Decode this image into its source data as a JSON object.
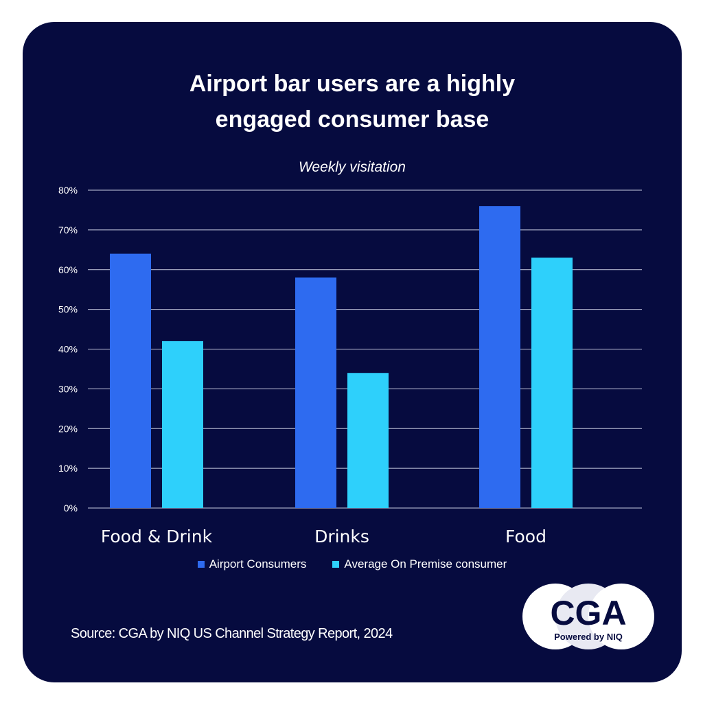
{
  "title": {
    "line1": "Airport bar users are a highly",
    "line2": "engaged consumer base"
  },
  "source": "Source: CGA by NIQ US Channel Strategy Report, 2024",
  "logo": {
    "text": "CGA",
    "tagline": "Powered by NIQ"
  },
  "colors": {
    "background": "#060b3f",
    "airport": "#2e6bf0",
    "average": "#2ed0fb",
    "text": "#ffffff",
    "grid": "#c8cce0"
  },
  "chart_data": {
    "type": "bar",
    "title": "Weekly visitation",
    "categories": [
      "Food & Drink",
      "Drinks",
      "Food"
    ],
    "series": [
      {
        "name": "Airport Consumers",
        "values": [
          64,
          58,
          76
        ],
        "color": "#2e6bf0"
      },
      {
        "name": "Average On Premise consumer",
        "values": [
          42,
          34,
          63
        ],
        "color": "#2ed0fb"
      }
    ],
    "ylim": [
      0,
      80
    ],
    "yticks": [
      "0%",
      "10%",
      "20%",
      "30%",
      "40%",
      "50%",
      "60%",
      "70%",
      "80%"
    ],
    "ytick_values": [
      0,
      10,
      20,
      30,
      40,
      50,
      60,
      70,
      80
    ],
    "grid": true,
    "legend": "bottom-center"
  }
}
